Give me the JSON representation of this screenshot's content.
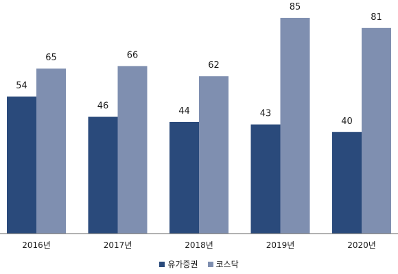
{
  "chart_data": {
    "type": "bar",
    "categories": [
      "2016년",
      "2017년",
      "2018년",
      "2019년",
      "2020년"
    ],
    "series": [
      {
        "name": "유가증권",
        "values": [
          54,
          46,
          44,
          43,
          40
        ],
        "color": "#2a4a7b"
      },
      {
        "name": "코스닥",
        "values": [
          65,
          66,
          62,
          85,
          81
        ],
        "color": "#7f8fb0"
      }
    ],
    "ylim": [
      0,
      85
    ],
    "grid": false,
    "legend_position": "bottom"
  }
}
